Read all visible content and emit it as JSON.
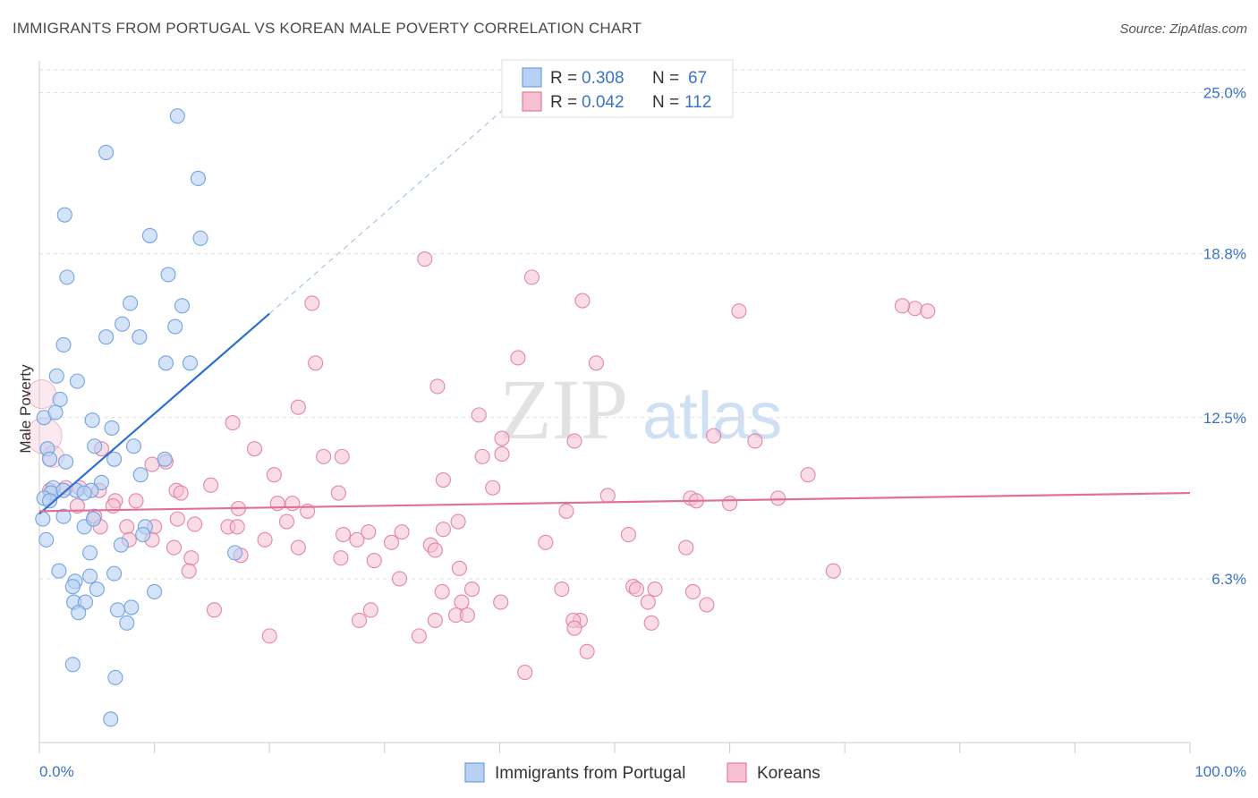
{
  "title": "IMMIGRANTS FROM PORTUGAL VS KOREAN MALE POVERTY CORRELATION CHART",
  "source": "Source: ZipAtlas.com",
  "watermark": {
    "zip": "ZIP",
    "atlas": "atlas"
  },
  "colors": {
    "blue": "#6c9fe0",
    "blue_fill": "#b7d0f4",
    "pink": "#e07a9e",
    "pink_fill": "#f6c0d2",
    "blue_line": "#2e6fd4",
    "pink_line": "#e0709a",
    "tick_text": "#3a74c8"
  },
  "legend": {
    "r_label": "R =",
    "n_label": "N =",
    "rows": [
      {
        "series": "Immigrants from Portugal",
        "r": "0.308",
        "n": "67"
      },
      {
        "series": "Koreans",
        "r": "0.042",
        "n": "112"
      }
    ]
  },
  "chart_data": {
    "type": "scatter",
    "title": "IMMIGRANTS FROM PORTUGAL VS KOREAN MALE POVERTY CORRELATION CHART",
    "xlabel": "",
    "ylabel": "Male Poverty",
    "xlim": [
      0,
      100
    ],
    "ylim": [
      0,
      26.5
    ],
    "x_tick_labels": [
      "0.0%",
      "100.0%"
    ],
    "y_ticks": [
      6.3,
      12.5,
      18.8,
      25.0
    ],
    "y_tick_labels": [
      "6.3%",
      "12.5%",
      "18.8%",
      "25.0%"
    ],
    "grid": "horizontal dashed",
    "legend_position": "top-center",
    "series": [
      {
        "name": "Immigrants from Portugal",
        "trend": {
          "x": [
            0,
            20
          ],
          "y": [
            8.8,
            16.5
          ],
          "dashed_to": [
            42,
            25.0
          ]
        },
        "points": [
          [
            12,
            24.1
          ],
          [
            5.8,
            22.7
          ],
          [
            13.8,
            21.7
          ],
          [
            2.2,
            20.3
          ],
          [
            9.6,
            19.5
          ],
          [
            14,
            19.4
          ],
          [
            2.4,
            17.9
          ],
          [
            11.2,
            18
          ],
          [
            7.9,
            16.9
          ],
          [
            12.4,
            16.8
          ],
          [
            7.2,
            16.1
          ],
          [
            11.8,
            16
          ],
          [
            5.8,
            15.6
          ],
          [
            8.7,
            15.6
          ],
          [
            2.1,
            15.3
          ],
          [
            11,
            14.6
          ],
          [
            13.1,
            14.6
          ],
          [
            1.5,
            14.1
          ],
          [
            3.3,
            13.9
          ],
          [
            1.8,
            13.2
          ],
          [
            0.4,
            12.5
          ],
          [
            1.4,
            12.7
          ],
          [
            4.6,
            12.4
          ],
          [
            6.3,
            12.1
          ],
          [
            0.7,
            11.3
          ],
          [
            4.8,
            11.4
          ],
          [
            8.2,
            11.4
          ],
          [
            0.9,
            10.9
          ],
          [
            2.3,
            10.8
          ],
          [
            6.5,
            10.9
          ],
          [
            10.9,
            10.9
          ],
          [
            8.8,
            10.3
          ],
          [
            5.4,
            10
          ],
          [
            1.2,
            9.8
          ],
          [
            3.2,
            9.7
          ],
          [
            4.5,
            9.7
          ],
          [
            1,
            9.6
          ],
          [
            2.1,
            9.7
          ],
          [
            0.4,
            9.4
          ],
          [
            0.9,
            9.3
          ],
          [
            3.9,
            9.6
          ],
          [
            0.3,
            8.6
          ],
          [
            2.1,
            8.7
          ],
          [
            3.9,
            8.3
          ],
          [
            4.7,
            8.6
          ],
          [
            9.2,
            8.3
          ],
          [
            9,
            8
          ],
          [
            0.6,
            7.8
          ],
          [
            7.1,
            7.6
          ],
          [
            4.4,
            7.3
          ],
          [
            17,
            7.3
          ],
          [
            1.7,
            6.6
          ],
          [
            6.5,
            6.5
          ],
          [
            3.1,
            6.2
          ],
          [
            4.4,
            6.4
          ],
          [
            2.9,
            6
          ],
          [
            5,
            5.9
          ],
          [
            10,
            5.8
          ],
          [
            3,
            5.4
          ],
          [
            4,
            5.4
          ],
          [
            8,
            5.2
          ],
          [
            6.8,
            5.1
          ],
          [
            3.4,
            5
          ],
          [
            7.6,
            4.6
          ],
          [
            2.9,
            3
          ],
          [
            6.6,
            2.5
          ],
          [
            6.2,
            0.9
          ]
        ]
      },
      {
        "name": "Koreans",
        "trend": {
          "x": [
            0,
            100
          ],
          "y": [
            8.9,
            9.6
          ]
        },
        "points": [
          [
            33.5,
            18.6
          ],
          [
            42.8,
            17.9
          ],
          [
            47.2,
            17
          ],
          [
            23.7,
            16.9
          ],
          [
            60.8,
            16.6
          ],
          [
            76.1,
            16.7
          ],
          [
            75,
            16.8
          ],
          [
            77.2,
            16.6
          ],
          [
            41.6,
            14.8
          ],
          [
            48.4,
            14.6
          ],
          [
            24,
            14.6
          ],
          [
            34.6,
            13.7
          ],
          [
            22.5,
            12.9
          ],
          [
            38.2,
            12.6
          ],
          [
            16.8,
            12.3
          ],
          [
            40.2,
            11.7
          ],
          [
            46.5,
            11.6
          ],
          [
            58.6,
            11.8
          ],
          [
            62.2,
            11.6
          ],
          [
            5.4,
            11.3
          ],
          [
            18.7,
            11.3
          ],
          [
            24.7,
            11
          ],
          [
            26.3,
            11
          ],
          [
            38.5,
            11
          ],
          [
            40.2,
            11.1
          ],
          [
            9.8,
            10.7
          ],
          [
            11,
            10.8
          ],
          [
            20.4,
            10.3
          ],
          [
            35.1,
            10.1
          ],
          [
            66.8,
            10.3
          ],
          [
            14.9,
            9.9
          ],
          [
            39.4,
            9.8
          ],
          [
            0.9,
            9.7
          ],
          [
            2.3,
            9.8
          ],
          [
            3.5,
            9.8
          ],
          [
            5.2,
            9.7
          ],
          [
            11.9,
            9.7
          ],
          [
            12.3,
            9.6
          ],
          [
            26,
            9.6
          ],
          [
            49.4,
            9.5
          ],
          [
            56.6,
            9.4
          ],
          [
            64.2,
            9.4
          ],
          [
            6.6,
            9.3
          ],
          [
            8.4,
            9.3
          ],
          [
            20.7,
            9.2
          ],
          [
            22,
            9.2
          ],
          [
            57.1,
            9.3
          ],
          [
            60,
            9.2
          ],
          [
            3.3,
            9.1
          ],
          [
            6.4,
            9.1
          ],
          [
            17.3,
            9
          ],
          [
            23.3,
            8.9
          ],
          [
            45.8,
            8.9
          ],
          [
            4.8,
            8.7
          ],
          [
            12,
            8.6
          ],
          [
            21.5,
            8.5
          ],
          [
            36.4,
            8.5
          ],
          [
            5.3,
            8.3
          ],
          [
            7.6,
            8.3
          ],
          [
            10,
            8.3
          ],
          [
            13.5,
            8.4
          ],
          [
            16.4,
            8.3
          ],
          [
            17.2,
            8.3
          ],
          [
            31.5,
            8.1
          ],
          [
            35.1,
            8.2
          ],
          [
            26.4,
            8
          ],
          [
            28.6,
            8.1
          ],
          [
            51.2,
            8
          ],
          [
            7.8,
            7.8
          ],
          [
            9.8,
            7.8
          ],
          [
            19.6,
            7.8
          ],
          [
            27.6,
            7.8
          ],
          [
            30.6,
            7.7
          ],
          [
            34,
            7.6
          ],
          [
            44,
            7.7
          ],
          [
            11.7,
            7.5
          ],
          [
            22.5,
            7.5
          ],
          [
            34.4,
            7.4
          ],
          [
            56.2,
            7.5
          ],
          [
            13.2,
            7.1
          ],
          [
            17.5,
            7.2
          ],
          [
            26.2,
            7.1
          ],
          [
            29.1,
            7
          ],
          [
            36.5,
            6.7
          ],
          [
            13,
            6.6
          ],
          [
            31.3,
            6.3
          ],
          [
            69,
            6.6
          ],
          [
            37.6,
            5.9
          ],
          [
            45.4,
            5.9
          ],
          [
            51.6,
            6
          ],
          [
            51.9,
            5.9
          ],
          [
            53.5,
            5.9
          ],
          [
            56.8,
            5.8
          ],
          [
            35,
            5.8
          ],
          [
            36.7,
            5.4
          ],
          [
            40.1,
            5.4
          ],
          [
            52.9,
            5.4
          ],
          [
            58,
            5.3
          ],
          [
            15.2,
            5.1
          ],
          [
            28.8,
            5.1
          ],
          [
            36.2,
            4.9
          ],
          [
            37.2,
            4.9
          ],
          [
            27.8,
            4.7
          ],
          [
            34.4,
            4.7
          ],
          [
            47,
            4.7
          ],
          [
            46.4,
            4.7
          ],
          [
            53.2,
            4.6
          ],
          [
            46.5,
            4.4
          ],
          [
            20,
            4.1
          ],
          [
            33,
            4.1
          ],
          [
            47.6,
            3.5
          ],
          [
            42.2,
            2.7
          ]
        ]
      }
    ]
  }
}
